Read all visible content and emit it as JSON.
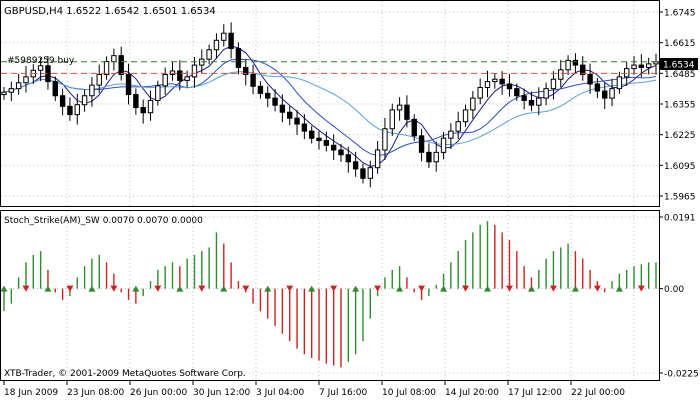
{
  "header": {
    "main_info": "GBPUSD,H4  1.6522 1.6542 1.6501 1.6534",
    "order_label": "#5989259 buy",
    "indicator_info": "Stoch_Strike(AM)_SW 0.0070 0.0070 0.0000",
    "copyright": "XTB-Trader, © 2001-2009 MetaQuotes Software Corp."
  },
  "price_axis": {
    "labels": [
      "1.6745",
      "1.6615",
      "1.6485",
      "1.6355",
      "1.6225",
      "1.6095",
      "1.5965"
    ],
    "current": "1.6534"
  },
  "indicator_axis": {
    "labels": [
      "0.0191",
      "0.00",
      "-0.0225"
    ]
  },
  "time_axis": {
    "labels": [
      "18 Jun 2009",
      "23 Jun 08:00",
      "26 Jun 00:00",
      "30 Jun 12:00",
      "3 Jul 04:00",
      "7 Jul 16:00",
      "10 Jul 08:00",
      "14 Jul 20:00",
      "17 Jul 12:00",
      "22 Jul 00:00"
    ]
  },
  "colors": {
    "background": "#ffffff",
    "grid": "#c0c0c0",
    "candle": "#000000",
    "bid_line": "#2f7f2f",
    "order_line": "#e0522a",
    "ma_fast": "#1c1c8c",
    "ma_mid": "#2f4fbf",
    "ma_slow": "#5aa0e0",
    "hist_up": "#2e8b2e",
    "hist_down": "#d02020",
    "signal_up": "#2e8b2e",
    "signal_down": "#d02020"
  },
  "chart_data": [
    {
      "type": "candlestick",
      "symbol": "GBPUSD",
      "timeframe": "H4",
      "ohlc_last": {
        "open": 1.6522,
        "high": 1.6542,
        "low": 1.6501,
        "close": 1.6534
      },
      "ylim": [
        1.5965,
        1.6745
      ],
      "bid_price": 1.6534,
      "order_price": 1.6485,
      "close": [
        1.6405,
        1.642,
        1.6445,
        1.647,
        1.6498,
        1.6517,
        1.645,
        1.639,
        1.6345,
        1.631,
        1.6352,
        1.639,
        1.6435,
        1.648,
        1.6535,
        1.656,
        1.648,
        1.6395,
        1.634,
        1.6318,
        1.637,
        1.6432,
        1.648,
        1.6495,
        1.6455,
        1.647,
        1.652,
        1.6545,
        1.6585,
        1.6625,
        1.6655,
        1.659,
        1.651,
        1.648,
        1.643,
        1.64,
        1.638,
        1.635,
        1.632,
        1.6295,
        1.627,
        1.624,
        1.621,
        1.62,
        1.618,
        1.616,
        1.614,
        1.611,
        1.608,
        1.604,
        1.6085,
        1.616,
        1.625,
        1.633,
        1.635,
        1.629,
        1.622,
        1.615,
        1.611,
        1.615,
        1.621,
        1.624,
        1.628,
        1.633,
        1.638,
        1.6425,
        1.645,
        1.646,
        1.644,
        1.642,
        1.639,
        1.637,
        1.635,
        1.638,
        1.642,
        1.646,
        1.65,
        1.654,
        1.652,
        1.648,
        1.644,
        1.641,
        1.638,
        1.642,
        1.647,
        1.6505,
        1.652,
        1.651,
        1.6525,
        1.6534
      ]
    },
    {
      "type": "bar",
      "name": "Stoch_Strike(AM)_SW",
      "ylim": [
        -0.0225,
        0.0191
      ],
      "last_values": [
        0.007,
        0.007,
        0.0
      ],
      "values": [
        -0.006,
        -0.004,
        0.003,
        0.007,
        0.009,
        0.01,
        0.005,
        -0.001,
        -0.003,
        -0.002,
        0.003,
        0.006,
        0.008,
        0.009,
        0.007,
        0.004,
        -0.001,
        -0.003,
        -0.004,
        -0.002,
        0.002,
        0.005,
        0.006,
        0.007,
        0.006,
        0.008,
        0.009,
        0.01,
        0.011,
        0.015,
        0.012,
        0.007,
        0.002,
        -0.001,
        -0.004,
        -0.006,
        -0.008,
        -0.01,
        -0.012,
        -0.014,
        -0.016,
        -0.0175,
        -0.0185,
        -0.0192,
        -0.02,
        -0.0205,
        -0.021,
        -0.0195,
        -0.0175,
        -0.014,
        -0.008,
        -0.002,
        0.003,
        0.005,
        0.006,
        0.003,
        -0.001,
        -0.003,
        -0.002,
        0.001,
        0.004,
        0.007,
        0.01,
        0.013,
        0.015,
        0.017,
        0.018,
        0.017,
        0.015,
        0.013,
        0.01,
        0.006,
        0.003,
        0.005,
        0.008,
        0.01,
        0.011,
        0.012,
        0.01,
        0.008,
        0.005,
        0.002,
        -0.001,
        0.002,
        0.004,
        0.005,
        0.006,
        0.0065,
        0.007,
        0.007
      ]
    }
  ]
}
